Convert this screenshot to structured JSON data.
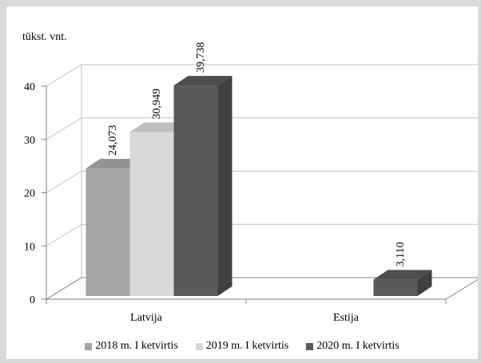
{
  "chart_data": {
    "type": "bar",
    "ylabel": "tūkst. vnt.",
    "categories": [
      "Latvija",
      "Estija"
    ],
    "ylim": [
      0,
      40
    ],
    "yticks": [
      "0",
      "10",
      "20",
      "30",
      "40"
    ],
    "grid": true,
    "legend_position": "bottom",
    "series": [
      {
        "name": "2018 m. I ketvirtis",
        "values": [
          24.073,
          null
        ],
        "labels": [
          "24,073",
          ""
        ],
        "color": "#a6a6a6"
      },
      {
        "name": "2019 m. I ketvirtis",
        "values": [
          30.949,
          null
        ],
        "labels": [
          "30,949",
          ""
        ],
        "color": "#d9d9d9"
      },
      {
        "name": "2020 m. I ketvirtis",
        "values": [
          39.738,
          3.11
        ],
        "labels": [
          "39,738",
          "3,110"
        ],
        "color": "#595959"
      }
    ]
  }
}
